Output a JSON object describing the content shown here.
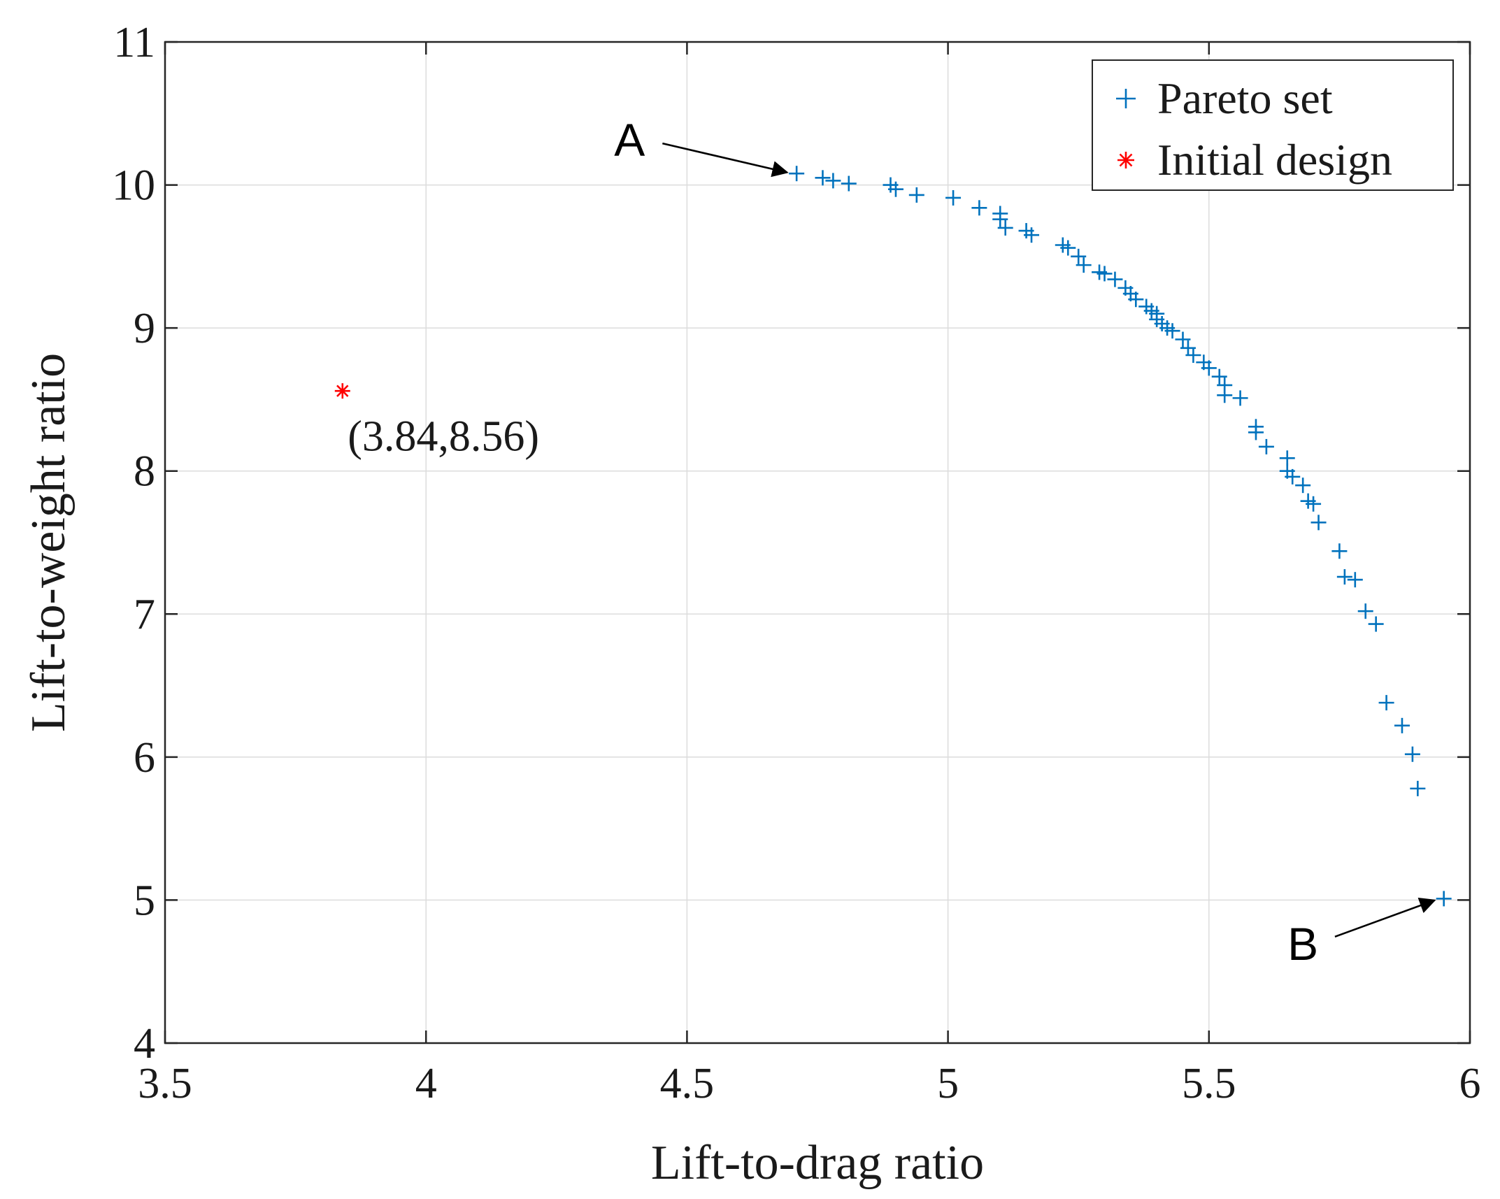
{
  "chart_data": {
    "type": "scatter",
    "xlabel": "Lift-to-drag ratio",
    "ylabel": "Lift-to-weight ratio",
    "xlim": [
      3.5,
      6
    ],
    "ylim": [
      4,
      11
    ],
    "xticks": [
      3.5,
      4,
      4.5,
      5,
      5.5,
      6
    ],
    "yticks": [
      4,
      5,
      6,
      7,
      8,
      9,
      10,
      11
    ],
    "xtick_labels": [
      "3.5",
      "4",
      "4.5",
      "5",
      "5.5",
      "6"
    ],
    "ytick_labels": [
      "4",
      "5",
      "6",
      "7",
      "8",
      "9",
      "10",
      "11"
    ],
    "grid": true,
    "legend_position": "top-right",
    "series": [
      {
        "name": "Pareto set",
        "marker": "+",
        "color": "#0072BD",
        "points": [
          [
            4.71,
            10.08
          ],
          [
            4.76,
            10.05
          ],
          [
            4.78,
            10.03
          ],
          [
            4.81,
            10.01
          ],
          [
            4.89,
            10.0
          ],
          [
            4.9,
            9.97
          ],
          [
            4.94,
            9.93
          ],
          [
            5.01,
            9.91
          ],
          [
            5.06,
            9.84
          ],
          [
            5.1,
            9.8
          ],
          [
            5.1,
            9.76
          ],
          [
            5.11,
            9.7
          ],
          [
            5.15,
            9.68
          ],
          [
            5.16,
            9.65
          ],
          [
            5.22,
            9.58
          ],
          [
            5.23,
            9.56
          ],
          [
            5.25,
            9.5
          ],
          [
            5.26,
            9.44
          ],
          [
            5.29,
            9.39
          ],
          [
            5.3,
            9.38
          ],
          [
            5.32,
            9.34
          ],
          [
            5.34,
            9.28
          ],
          [
            5.35,
            9.24
          ],
          [
            5.36,
            9.2
          ],
          [
            5.38,
            9.15
          ],
          [
            5.39,
            9.12
          ],
          [
            5.4,
            9.1
          ],
          [
            5.4,
            9.06
          ],
          [
            5.41,
            9.03
          ],
          [
            5.42,
            9.0
          ],
          [
            5.43,
            8.98
          ],
          [
            5.45,
            8.92
          ],
          [
            5.46,
            8.86
          ],
          [
            5.47,
            8.81
          ],
          [
            5.49,
            8.76
          ],
          [
            5.5,
            8.72
          ],
          [
            5.52,
            8.66
          ],
          [
            5.53,
            8.6
          ],
          [
            5.53,
            8.53
          ],
          [
            5.56,
            8.51
          ],
          [
            5.59,
            8.31
          ],
          [
            5.59,
            8.27
          ],
          [
            5.61,
            8.17
          ],
          [
            5.65,
            8.09
          ],
          [
            5.65,
            8.0
          ],
          [
            5.66,
            7.96
          ],
          [
            5.68,
            7.9
          ],
          [
            5.69,
            7.79
          ],
          [
            5.7,
            7.77
          ],
          [
            5.71,
            7.64
          ],
          [
            5.75,
            7.44
          ],
          [
            5.76,
            7.26
          ],
          [
            5.78,
            7.24
          ],
          [
            5.8,
            7.02
          ],
          [
            5.82,
            6.93
          ],
          [
            5.84,
            6.38
          ],
          [
            5.87,
            6.22
          ],
          [
            5.89,
            6.02
          ],
          [
            5.9,
            5.78
          ],
          [
            5.95,
            5.01
          ]
        ]
      },
      {
        "name": "Initial design",
        "marker": "*",
        "color": "#FF0000",
        "points": [
          [
            3.84,
            8.56
          ]
        ]
      }
    ],
    "annotations": [
      {
        "text": "A",
        "target": [
          4.71,
          10.08
        ],
        "text_at": [
          4.39,
          10.32
        ]
      },
      {
        "text": "B",
        "target": [
          5.95,
          5.01
        ],
        "text_at": [
          5.68,
          4.7
        ]
      },
      {
        "text": "(3.84,8.56)",
        "at": [
          3.85,
          8.25
        ]
      }
    ]
  }
}
